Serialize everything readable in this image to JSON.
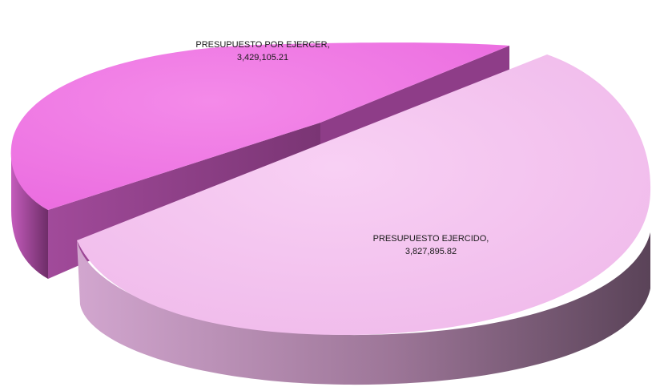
{
  "chart_data": {
    "type": "pie",
    "title": "",
    "slices": [
      {
        "label": "PRESUPUESTO EJERCIDO",
        "value": 3827895.82,
        "display_value": "3,827,895.82",
        "color": "#f5c2f0"
      },
      {
        "label": "PRESUPUESTO POR EJERCER",
        "value": 3429105.21,
        "display_value": "3,429,105.21",
        "color": "#f07ce6"
      }
    ],
    "legend": "none",
    "style": "3d-exploded"
  }
}
